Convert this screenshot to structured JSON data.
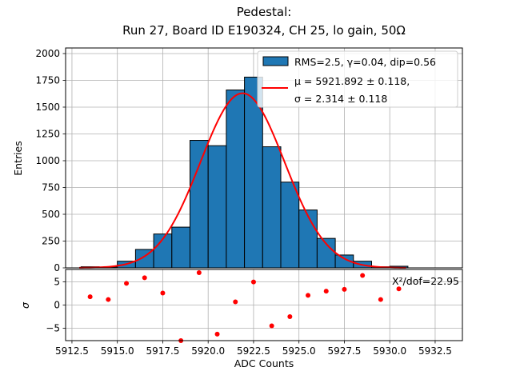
{
  "figure": {
    "title_line1": "Pedestal:",
    "title_line2": "Run 27, Board ID E190324, CH 25, lo gain, 50Ω"
  },
  "chart_data": {
    "type": "bar",
    "subtype": "histogram_with_gaussian_fit_and_residuals",
    "title": "Pedestal: Run 27, Board ID E190324, CH 25, lo gain, 50Ω",
    "xlabel": "ADC Counts",
    "ylabel": "Entries",
    "residual_ylabel": "σ",
    "grid": true,
    "legend_position": "upper right",
    "xlim": [
      5912.15,
      5934.0
    ],
    "ylim_main": [
      0,
      2052
    ],
    "ylim_residual": [
      -7.7,
      7.7
    ],
    "xtick_values": [
      5912.5,
      5915.0,
      5917.5,
      5920.0,
      5922.5,
      5925.0,
      5927.5,
      5930.0,
      5932.5
    ],
    "xtick_labels": [
      "5912.5",
      "5915.0",
      "5917.5",
      "5920.0",
      "5922.5",
      "5925.0",
      "5927.5",
      "5930.0",
      "5932.5"
    ],
    "ytick_values_main": [
      0,
      250,
      500,
      750,
      1000,
      1250,
      1500,
      1750,
      2000
    ],
    "ytick_labels_main": [
      "0",
      "250",
      "500",
      "750",
      "1000",
      "1250",
      "1500",
      "1750",
      "2000"
    ],
    "ytick_values_residual": [
      5,
      0,
      -5
    ],
    "ytick_labels_residual": [
      "5",
      "0",
      "−5"
    ],
    "bin_start": 5913,
    "bin_width": 1,
    "bin_counts": [
      10,
      8,
      62,
      172,
      316,
      380,
      1190,
      1140,
      1660,
      1780,
      1130,
      800,
      540,
      275,
      120,
      62,
      10,
      15
    ],
    "fit_curve": {
      "shape": "gaussian",
      "amplitude": 1630,
      "mu": 5921.892,
      "sigma": 2.314,
      "x_range": [
        5912.9,
        5930.9
      ]
    },
    "residuals": {
      "bin_centers": [
        5913.5,
        5914.5,
        5915.5,
        5916.5,
        5917.5,
        5918.5,
        5919.5,
        5920.5,
        5921.5,
        5922.5,
        5923.5,
        5924.5,
        5925.5,
        5926.5,
        5927.5,
        5928.5,
        5929.5,
        5930.5
      ],
      "values": [
        1.8,
        1.2,
        4.7,
        5.9,
        2.6,
        -7.7,
        7.0,
        -6.3,
        0.7,
        5.0,
        -4.5,
        -2.5,
        2.1,
        3.0,
        3.4,
        6.4,
        1.2,
        3.5
      ]
    },
    "legend": {
      "hist_label": "RMS=2.5, γ=0.04, dip=0.56",
      "fit_label_line1": "μ = 5921.892 ± 0.118,",
      "fit_label_line2": "σ = 2.314 ± 0.118"
    },
    "annotation": "X²/dof=22.95",
    "colors": {
      "bar_fill": "#1f77b4",
      "bar_edge": "#000000",
      "fit_line": "#ff0000",
      "residual_dot": "#ff0000",
      "grid": "#b0b0b0",
      "axis": "#000000",
      "legend_border": "#cccccc"
    }
  }
}
